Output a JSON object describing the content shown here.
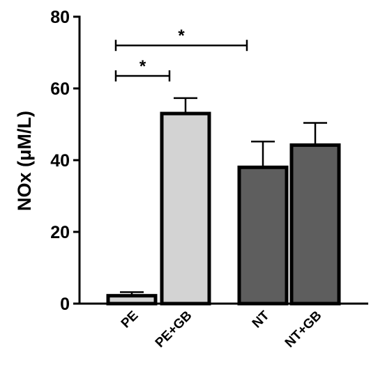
{
  "chart_data": {
    "type": "bar",
    "title": "",
    "xlabel": "",
    "ylabel": "NOx (μM/L)",
    "ylim": [
      0,
      80
    ],
    "yticks": [
      0,
      20,
      40,
      60,
      80
    ],
    "categories": [
      "PE",
      "PE+GB",
      "NT",
      "NT+GB"
    ],
    "values": [
      2.2,
      53.0,
      38.0,
      44.2
    ],
    "errors": [
      1.0,
      4.3,
      7.2,
      6.2
    ],
    "bar_colors": [
      "#d3d3d3",
      "#d3d3d3",
      "#5e5e5e",
      "#5e5e5e"
    ],
    "significance": [
      {
        "from": "PE",
        "to": "PE+GB",
        "label": "*",
        "y": 63.5
      },
      {
        "from": "PE",
        "to": "NT",
        "label": "*",
        "y": 72.0
      }
    ],
    "grid": false,
    "legend": "none"
  }
}
